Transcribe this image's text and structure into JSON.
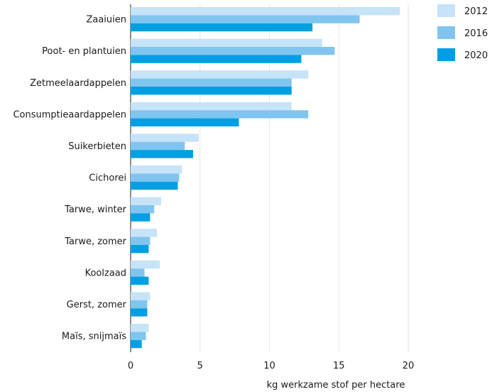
{
  "chart_data": {
    "type": "bar",
    "orientation": "horizontal",
    "title": "",
    "xlabel": "kg werkzame stof per hectare",
    "ylabel": "",
    "xlim": [
      0,
      20
    ],
    "xticks": [
      0,
      5,
      10,
      15,
      20
    ],
    "grid": "vertical",
    "legend_position": "top-right",
    "categories": [
      "Zaaiuien",
      "Poot- en plantuien",
      "Zetmeelaardappelen",
      "Consumptieaardappelen",
      "Suikerbieten",
      "Cichorei",
      "Tarwe, winter",
      "Tarwe, zomer",
      "Koolzaad",
      "Gerst, zomer",
      "Maïs, snijmaïs"
    ],
    "series": [
      {
        "name": "2012",
        "color": "#c6e3f7",
        "values": [
          19.4,
          13.8,
          12.8,
          11.6,
          4.9,
          3.7,
          2.2,
          1.9,
          2.1,
          1.4,
          1.3
        ]
      },
      {
        "name": "2016",
        "color": "#7fc5ef",
        "values": [
          16.5,
          14.7,
          11.6,
          12.8,
          3.9,
          3.5,
          1.7,
          1.4,
          1.0,
          1.2,
          1.1
        ]
      },
      {
        "name": "2020",
        "color": "#009fe3",
        "values": [
          13.1,
          12.3,
          11.6,
          7.8,
          4.5,
          3.4,
          1.4,
          1.3,
          1.3,
          1.2,
          0.8
        ]
      }
    ]
  }
}
